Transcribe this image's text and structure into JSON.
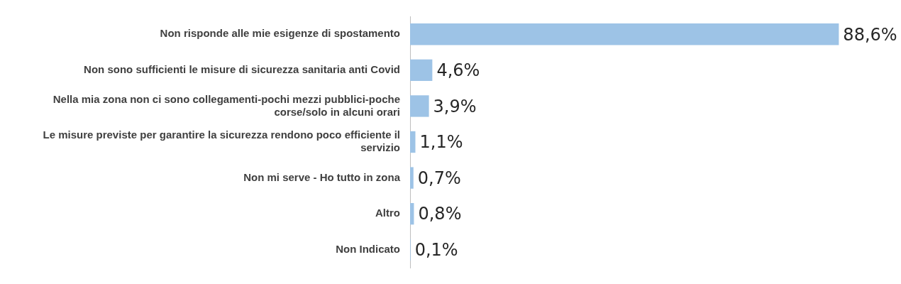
{
  "chart_data": {
    "type": "bar",
    "orientation": "horizontal",
    "categories": [
      "Non risponde alle mie esigenze di spostamento",
      "Non sono sufficienti le misure di sicurezza sanitaria anti Covid",
      "Nella mia zona non ci sono collegamenti-pochi mezzi pubblici-poche corse/solo in alcuni orari",
      "Le misure previste per garantire la sicurezza rendono poco efficiente il servizio",
      "Non mi serve - Ho tutto in zona",
      "Altro",
      "Non Indicato"
    ],
    "values": [
      88.6,
      4.6,
      3.9,
      1.1,
      0.7,
      0.8,
      0.1
    ],
    "value_labels": [
      "88,6%",
      "4,6%",
      "3,9%",
      "1,1%",
      "0,7%",
      "0,8%",
      "0,1%"
    ],
    "color": "#9dc3e6",
    "tick_labels": "y"
  }
}
